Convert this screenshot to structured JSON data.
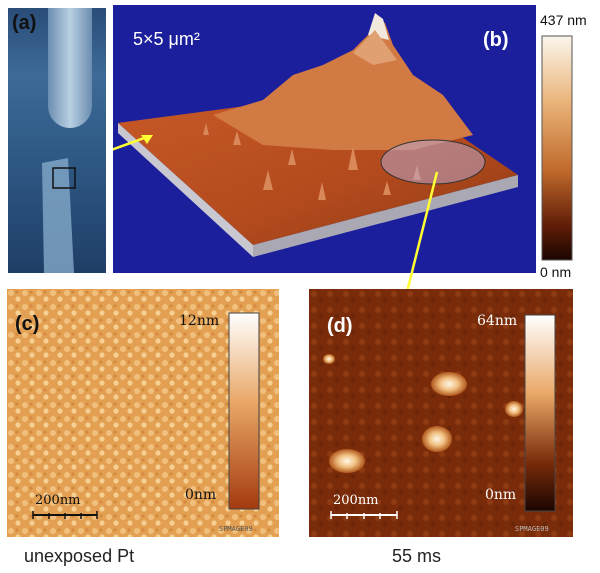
{
  "panels": {
    "a": {
      "label": "(a)"
    },
    "b": {
      "label": "(b)",
      "area": "5×5 μm²",
      "scale_max": "437 nm",
      "scale_min": "0 nm"
    },
    "c": {
      "label": "(c)",
      "scale_max": "12nm",
      "scale_min": "0nm",
      "scalebar": "200nm",
      "caption": "unexposed Pt",
      "watermark": "SPMAGE09"
    },
    "d": {
      "label": "(d)",
      "scale_max": "64nm",
      "scale_min": "0nm",
      "scalebar": "200nm",
      "caption": "55 ms",
      "watermark": "SPMAGE09"
    }
  },
  "colors": {
    "arrow": "#ffff33",
    "background_b": "#1c1f9c"
  }
}
